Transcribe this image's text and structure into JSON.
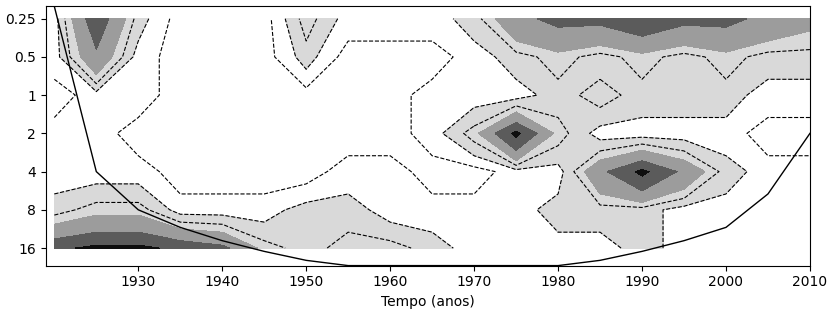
{
  "chart_data": {
    "type": "contour",
    "xlabel": "Tempo (anos)",
    "x": [
      1920,
      1925,
      1930,
      1935,
      1940,
      1945,
      1950,
      1955,
      1960,
      1965,
      1970,
      1975,
      1980,
      1985,
      1990,
      1995,
      2000,
      2005,
      2010
    ],
    "y": [
      0.25,
      0.5,
      1,
      2,
      4,
      8,
      16
    ],
    "z": [
      [
        2,
        8,
        3,
        1,
        1,
        1,
        4,
        2,
        2,
        2,
        3,
        6,
        7,
        7,
        8,
        7,
        7,
        6,
        5
      ],
      [
        2,
        6,
        2,
        1,
        1,
        1,
        3,
        1,
        1,
        1,
        2,
        3,
        4,
        3,
        4,
        3,
        4,
        3,
        3
      ],
      [
        1,
        2,
        2,
        1,
        1,
        1,
        1,
        1,
        1,
        2,
        2,
        2,
        3,
        4,
        3,
        3,
        3,
        2,
        2
      ],
      [
        2,
        2,
        1,
        1,
        1,
        1,
        1,
        1,
        1,
        2,
        4,
        9,
        4,
        2,
        2,
        2,
        2,
        1,
        1
      ],
      [
        2,
        2,
        2,
        1,
        1,
        1,
        1,
        2,
        2,
        1,
        1,
        2,
        2,
        6,
        9,
        6,
        3,
        2,
        2
      ],
      [
        3,
        4,
        4,
        2,
        2,
        2,
        3,
        3,
        2,
        2,
        2,
        2,
        3,
        3,
        3,
        2,
        2,
        2,
        2
      ],
      [
        8,
        9,
        9,
        8,
        7,
        4,
        3,
        4,
        4,
        3,
        2,
        2,
        2,
        2,
        3,
        2,
        2,
        2,
        2
      ]
    ],
    "fill_levels": [
      2.5,
      4.5,
      6.5,
      8.5,
      10
    ],
    "line_levels": [
      1.5,
      2.5,
      3.5
    ],
    "coi": [
      0.2,
      4,
      8,
      11,
      14,
      17,
      20,
      22,
      22,
      22,
      22,
      22,
      22,
      20,
      17,
      14,
      11,
      6,
      2
    ],
    "xlim": [
      1919,
      2010
    ],
    "xticks": [
      1930,
      1940,
      1950,
      1960,
      1970,
      1980,
      1990,
      2000,
      2010
    ],
    "ylim": [
      22,
      0.2
    ],
    "yticks": [
      0.25,
      0.5,
      1,
      2,
      4,
      8,
      16
    ],
    "log": "y"
  }
}
